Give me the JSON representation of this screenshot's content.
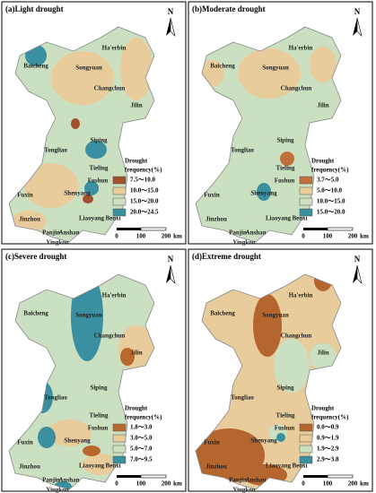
{
  "panels": [
    {
      "title": "(a)Light drought",
      "legend": [
        {
          "label": "7.5～10.0",
          "color": "#a0522d"
        },
        {
          "label": "10.0～15.0",
          "color": "#e9cc9c"
        },
        {
          "label": "15.0～20.0",
          "color": "#cbe0c1"
        },
        {
          "label": "20.0～24.5",
          "color": "#3a8fa0"
        }
      ]
    },
    {
      "title": "(b)Moderate drought",
      "legend": [
        {
          "label": "3.7～5.0",
          "color": "#c0703a"
        },
        {
          "label": "5.0～10.0",
          "color": "#e9cc9c"
        },
        {
          "label": "10.0～15.0",
          "color": "#cbe0c1"
        },
        {
          "label": "15.0～20.0",
          "color": "#3a8fa0"
        }
      ]
    },
    {
      "title": "(c)Severe drought",
      "legend": [
        {
          "label": "1.8～3.0",
          "color": "#b8682f"
        },
        {
          "label": "3.0～5.0",
          "color": "#e9cc9c"
        },
        {
          "label": "5.0～7.0",
          "color": "#cbe0c1"
        },
        {
          "label": "7.0～9.5",
          "color": "#3a8fa0"
        }
      ]
    },
    {
      "title": "(d)Extreme drought",
      "legend": [
        {
          "label": "0.0～0.9",
          "color": "#b5652e"
        },
        {
          "label": "0.9～1.9",
          "color": "#e9cc9c"
        },
        {
          "label": "1.9～2.9",
          "color": "#cbe0c1"
        },
        {
          "label": "2.9～3.8",
          "color": "#3a8fa0"
        }
      ]
    }
  ],
  "legend_title": [
    "Drought",
    "frequency(%)"
  ],
  "north_label": "N",
  "scale_labels": [
    "0",
    "100",
    "200",
    "km"
  ],
  "cities": [
    "Ha'erbin",
    "Baicheng",
    "Songyuan",
    "Changchun",
    "Jilin",
    "Siping",
    "Tongliao",
    "Tieling",
    "Fuxin",
    "Shenyang",
    "Fushun",
    "Jinzhou",
    "Liaoyang",
    "Benxi",
    "Panjin",
    "Anshan",
    "Yingkou"
  ]
}
